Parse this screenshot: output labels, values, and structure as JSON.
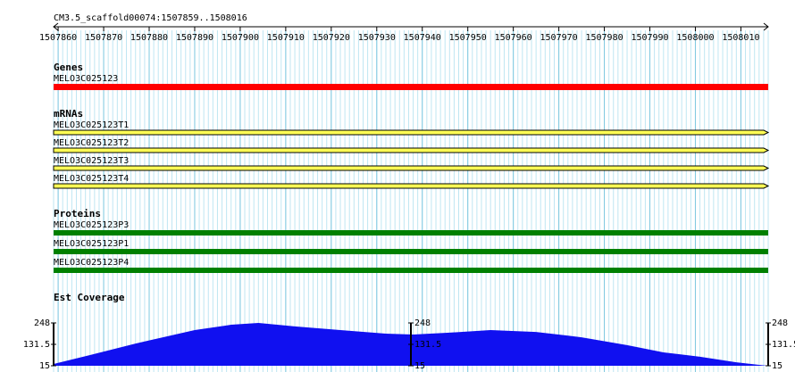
{
  "location": "CM3.5_scaffold00074:1507859..1508016",
  "ruler": {
    "xlim": [
      1507859,
      1508016
    ],
    "xticks": [
      1507860,
      1507870,
      1507880,
      1507890,
      1507900,
      1507910,
      1507920,
      1507930,
      1507940,
      1507950,
      1507960,
      1507970,
      1507980,
      1507990,
      1508000,
      1508010
    ]
  },
  "tracks": {
    "genes": {
      "title": "Genes",
      "features": [
        "MELO3C025123"
      ],
      "color": "#ff0000"
    },
    "mrnas": {
      "title": "mRNAs",
      "features": [
        "MELO3C025123T1",
        "MELO3C025123T2",
        "MELO3C025123T3",
        "MELO3C025123T4"
      ],
      "color": "#ffff55"
    },
    "proteins": {
      "title": "Proteins",
      "features": [
        "MELO3C025123P3",
        "MELO3C025123P1",
        "MELO3C025123P4"
      ],
      "color": "#008000"
    },
    "coverage": {
      "title": "Est Coverage",
      "type": "area",
      "color": "#1010f0",
      "ylim": [
        15,
        248
      ],
      "yticks": [
        15,
        131.5,
        248
      ],
      "x": [
        1507859,
        1507867,
        1507877,
        1507883,
        1507890,
        1507898,
        1507904,
        1507912,
        1507922,
        1507932,
        1507938,
        1507946,
        1507955,
        1507965,
        1507975,
        1507985,
        1507993,
        1508001,
        1508009,
        1508014,
        1508016
      ],
      "values": [
        25,
        73,
        136,
        170,
        209,
        238,
        248,
        229,
        209,
        190,
        185,
        195,
        209,
        199,
        170,
        127,
        88,
        64,
        34,
        20,
        15
      ]
    }
  }
}
